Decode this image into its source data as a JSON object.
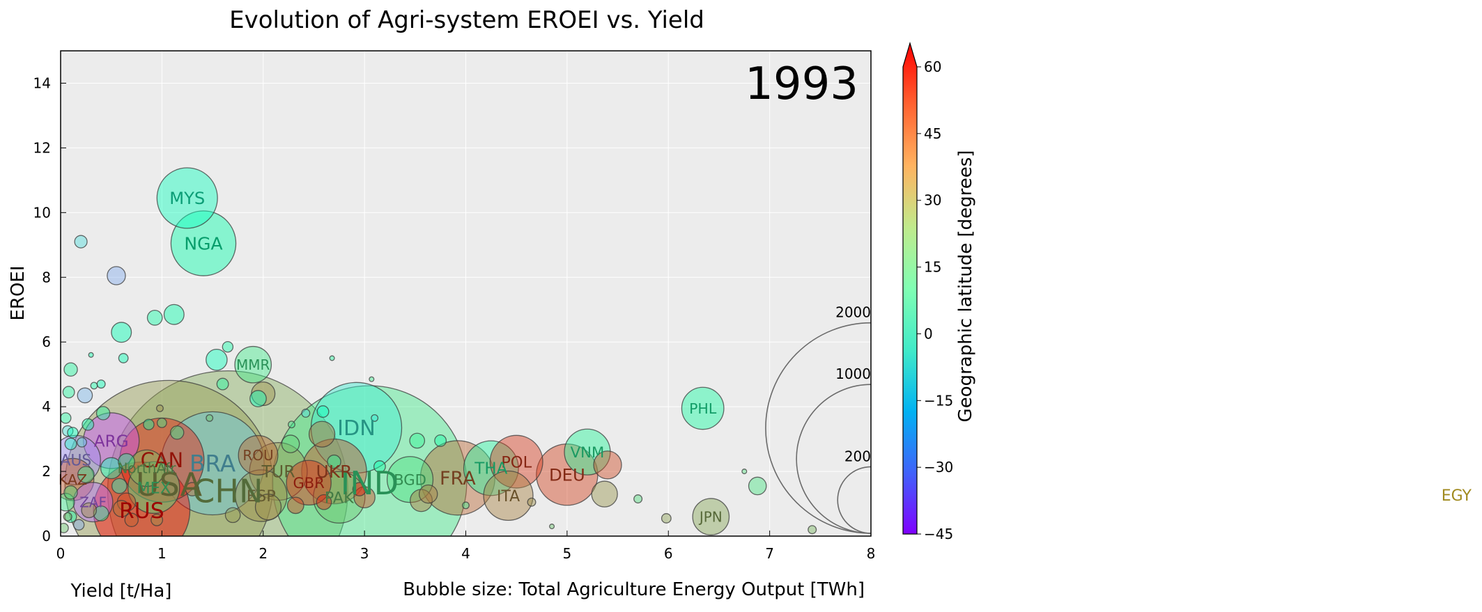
{
  "chart_data": {
    "type": "scatter",
    "title": "Evolution of Agri-system EROEI vs. Yield",
    "year_label": "1993",
    "xlabel": "Yield [t/Ha]",
    "ylabel": "EROEI",
    "size_label": "Bubble size: Total Agriculture Energy Output [TWh]",
    "colorbar_label": "Geographic latitude [degrees]",
    "xlim": [
      0,
      8
    ],
    "ylim": [
      0,
      15
    ],
    "x_ticks": [
      "0",
      "1",
      "2",
      "3",
      "4",
      "5",
      "6",
      "7",
      "8"
    ],
    "y_ticks": [
      "0",
      "2",
      "4",
      "6",
      "8",
      "10",
      "12",
      "14"
    ],
    "color_range": [
      -45,
      60
    ],
    "color_ticks": [
      "−45",
      "−30",
      "−15",
      "0",
      "15",
      "30",
      "45",
      "60"
    ],
    "grid": true,
    "bubble_size_legend": [
      {
        "label": "2000",
        "value": 2000
      },
      {
        "label": "1000",
        "value": 1000
      },
      {
        "label": "200",
        "value": 200
      }
    ],
    "outside_label": {
      "text": "EGY",
      "color": "#a08a1e"
    },
    "points": [
      {
        "label": "MYS",
        "x": 1.25,
        "y": 10.45,
        "value": 165,
        "lat": 4
      },
      {
        "label": "NGA",
        "x": 1.41,
        "y": 9.05,
        "value": 190,
        "lat": 10
      },
      {
        "label": "MMR",
        "x": 1.9,
        "y": 5.3,
        "value": 60,
        "lat": 21
      },
      {
        "label": "PHL",
        "x": 6.34,
        "y": 3.95,
        "value": 80,
        "lat": 13
      },
      {
        "label": "IDN",
        "x": 2.92,
        "y": 3.35,
        "value": 370,
        "lat": -5
      },
      {
        "label": "ARG",
        "x": 0.5,
        "y": 2.95,
        "value": 140,
        "lat": -34
      },
      {
        "label": "VNM",
        "x": 5.2,
        "y": 2.6,
        "value": 95,
        "lat": 16
      },
      {
        "label": "POL",
        "x": 4.5,
        "y": 2.3,
        "value": 125,
        "lat": 52
      },
      {
        "label": "THA",
        "x": 4.25,
        "y": 2.1,
        "value": 135,
        "lat": 15
      },
      {
        "label": "DEU",
        "x": 5.0,
        "y": 1.9,
        "value": 170,
        "lat": 51
      },
      {
        "label": "FRA",
        "x": 3.92,
        "y": 1.8,
        "value": 250,
        "lat": 46
      },
      {
        "label": "ITA",
        "x": 4.42,
        "y": 1.25,
        "value": 110,
        "lat": 42
      },
      {
        "label": "JPN",
        "x": 6.42,
        "y": 0.6,
        "value": 60,
        "lat": 36
      },
      {
        "label": "BGD",
        "x": 3.45,
        "y": 1.75,
        "value": 95,
        "lat": 24
      },
      {
        "label": "IND",
        "x": 3.05,
        "y": 1.65,
        "value": 1700,
        "lat": 21
      },
      {
        "label": "PAK",
        "x": 2.75,
        "y": 1.2,
        "value": 120,
        "lat": 30
      },
      {
        "label": "UKR",
        "x": 2.7,
        "y": 2.0,
        "value": 190,
        "lat": 49
      },
      {
        "label": "GBR",
        "x": 2.45,
        "y": 1.65,
        "value": 90,
        "lat": 54
      },
      {
        "label": "TUR",
        "x": 2.15,
        "y": 2.0,
        "value": 150,
        "lat": 39
      },
      {
        "label": "ESP",
        "x": 1.98,
        "y": 1.25,
        "value": 120,
        "lat": 40
      },
      {
        "label": "ROU",
        "x": 1.95,
        "y": 2.5,
        "value": 70,
        "lat": 46
      },
      {
        "label": "CHN",
        "x": 1.65,
        "y": 1.4,
        "value": 2600,
        "lat": 35
      },
      {
        "label": "BRA",
        "x": 1.5,
        "y": 2.25,
        "value": 480,
        "lat": -14
      },
      {
        "label": "USA",
        "x": 1.07,
        "y": 1.6,
        "value": 1950,
        "lat": 38
      },
      {
        "label": "CAN",
        "x": 1.0,
        "y": 2.35,
        "value": 320,
        "lat": 56
      },
      {
        "label": "NorthAfr",
        "x": 0.85,
        "y": 2.1,
        "value": 60,
        "lat": 32
      },
      {
        "label": "MEX",
        "x": 0.92,
        "y": 1.5,
        "value": 120,
        "lat": 23
      },
      {
        "label": "RUS",
        "x": 0.8,
        "y": 0.8,
        "value": 420,
        "lat": 61
      },
      {
        "label": "AUS",
        "x": 0.15,
        "y": 2.35,
        "value": 110,
        "lat": -25
      },
      {
        "label": "KAZ",
        "x": 0.12,
        "y": 1.75,
        "value": 80,
        "lat": 48
      },
      {
        "label": "ZAF",
        "x": 0.32,
        "y": 1.05,
        "value": 70,
        "lat": -30
      },
      {
        "label": "",
        "x": 0.2,
        "y": 9.1,
        "value": 7,
        "lat": -10
      },
      {
        "label": "",
        "x": 0.55,
        "y": 8.05,
        "value": 15,
        "lat": -20
      },
      {
        "label": "",
        "x": 0.6,
        "y": 6.3,
        "value": 18,
        "lat": 8
      },
      {
        "label": "",
        "x": 0.93,
        "y": 6.75,
        "value": 10,
        "lat": 12
      },
      {
        "label": "",
        "x": 1.12,
        "y": 6.85,
        "value": 18,
        "lat": 10
      },
      {
        "label": "",
        "x": 1.54,
        "y": 5.45,
        "value": 20,
        "lat": 5
      },
      {
        "label": "",
        "x": 1.65,
        "y": 5.85,
        "value": 5,
        "lat": 12
      },
      {
        "label": "",
        "x": 1.6,
        "y": 4.7,
        "value": 6,
        "lat": 15
      },
      {
        "label": "",
        "x": 1.95,
        "y": 4.25,
        "value": 12,
        "lat": 4
      },
      {
        "label": "",
        "x": 2.0,
        "y": 4.4,
        "value": 25,
        "lat": 40
      },
      {
        "label": "",
        "x": 0.1,
        "y": 5.15,
        "value": 8,
        "lat": 15
      },
      {
        "label": "",
        "x": 0.62,
        "y": 5.5,
        "value": 4,
        "lat": 8
      },
      {
        "label": "",
        "x": 0.3,
        "y": 5.6,
        "value": 1,
        "lat": 10
      },
      {
        "label": "",
        "x": 0.08,
        "y": 4.45,
        "value": 6,
        "lat": 15
      },
      {
        "label": "",
        "x": 0.24,
        "y": 4.35,
        "value": 10,
        "lat": -18
      },
      {
        "label": "",
        "x": 0.4,
        "y": 4.7,
        "value": 3,
        "lat": 8
      },
      {
        "label": "",
        "x": 0.33,
        "y": 4.65,
        "value": 2,
        "lat": 12
      },
      {
        "label": "",
        "x": 0.42,
        "y": 3.8,
        "value": 8,
        "lat": 15
      },
      {
        "label": "",
        "x": 0.05,
        "y": 3.65,
        "value": 5,
        "lat": 15
      },
      {
        "label": "",
        "x": 0.27,
        "y": 3.45,
        "value": 6,
        "lat": 10
      },
      {
        "label": "",
        "x": 0.07,
        "y": 3.25,
        "value": 5,
        "lat": -8
      },
      {
        "label": "",
        "x": 0.12,
        "y": 3.2,
        "value": 5,
        "lat": 8
      },
      {
        "label": "",
        "x": 0.1,
        "y": 2.85,
        "value": 6,
        "lat": 0
      },
      {
        "label": "",
        "x": 0.21,
        "y": 2.9,
        "value": 4,
        "lat": -12
      },
      {
        "label": "",
        "x": 0.65,
        "y": 2.3,
        "value": 12,
        "lat": 15
      },
      {
        "label": "",
        "x": 0.5,
        "y": 2.1,
        "value": 20,
        "lat": 2
      },
      {
        "label": "",
        "x": 0.25,
        "y": 1.9,
        "value": 12,
        "lat": 20
      },
      {
        "label": "",
        "x": 0.58,
        "y": 1.55,
        "value": 10,
        "lat": 0
      },
      {
        "label": "",
        "x": 0.1,
        "y": 1.35,
        "value": 8,
        "lat": 25
      },
      {
        "label": "",
        "x": 0.05,
        "y": 1.05,
        "value": 14,
        "lat": 20
      },
      {
        "label": "",
        "x": 0.1,
        "y": 0.6,
        "value": 6,
        "lat": 12
      },
      {
        "label": "",
        "x": 0.18,
        "y": 0.35,
        "value": 5,
        "lat": -20
      },
      {
        "label": "",
        "x": 0.4,
        "y": 0.7,
        "value": 10,
        "lat": 18
      },
      {
        "label": "",
        "x": 0.03,
        "y": 0.25,
        "value": 4,
        "lat": 30
      },
      {
        "label": "",
        "x": 0.07,
        "y": 0.6,
        "value": 3,
        "lat": 35
      },
      {
        "label": "",
        "x": 0.87,
        "y": 3.45,
        "value": 5,
        "lat": 12
      },
      {
        "label": "",
        "x": 1.0,
        "y": 3.5,
        "value": 4,
        "lat": 20
      },
      {
        "label": "",
        "x": 1.15,
        "y": 3.2,
        "value": 8,
        "lat": 20
      },
      {
        "label": "",
        "x": 0.98,
        "y": 3.95,
        "value": 2,
        "lat": 40
      },
      {
        "label": "",
        "x": 1.47,
        "y": 3.65,
        "value": 2,
        "lat": 30
      },
      {
        "label": "",
        "x": 2.27,
        "y": 2.85,
        "value": 14,
        "lat": 28
      },
      {
        "label": "",
        "x": 2.42,
        "y": 3.8,
        "value": 3,
        "lat": -10
      },
      {
        "label": "",
        "x": 2.59,
        "y": 3.85,
        "value": 6,
        "lat": 5
      },
      {
        "label": "",
        "x": 2.28,
        "y": 3.45,
        "value": 2,
        "lat": 20
      },
      {
        "label": "",
        "x": 2.58,
        "y": 3.15,
        "value": 30,
        "lat": 45
      },
      {
        "label": "",
        "x": 2.7,
        "y": 2.3,
        "value": 8,
        "lat": 18
      },
      {
        "label": "",
        "x": 3.15,
        "y": 2.15,
        "value": 6,
        "lat": 12
      },
      {
        "label": "",
        "x": 3.52,
        "y": 2.95,
        "value": 10,
        "lat": 18
      },
      {
        "label": "",
        "x": 3.75,
        "y": 2.95,
        "value": 6,
        "lat": 12
      },
      {
        "label": "",
        "x": 3.1,
        "y": 3.65,
        "value": 2,
        "lat": -5
      },
      {
        "label": "",
        "x": 3.07,
        "y": 4.85,
        "value": 1,
        "lat": 20
      },
      {
        "label": "",
        "x": 2.68,
        "y": 5.5,
        "value": 1,
        "lat": 15
      },
      {
        "label": "",
        "x": 5.4,
        "y": 2.2,
        "value": 35,
        "lat": 50
      },
      {
        "label": "",
        "x": 5.37,
        "y": 1.3,
        "value": 30,
        "lat": 39
      },
      {
        "label": "",
        "x": 3.63,
        "y": 1.3,
        "value": 15,
        "lat": 42
      },
      {
        "label": "",
        "x": 3.56,
        "y": 1.1,
        "value": 22,
        "lat": 44
      },
      {
        "label": "",
        "x": 2.32,
        "y": 0.95,
        "value": 12,
        "lat": 51
      },
      {
        "label": "",
        "x": 2.6,
        "y": 1.05,
        "value": 10,
        "lat": 55
      },
      {
        "label": "",
        "x": 3.0,
        "y": 1.2,
        "value": 20,
        "lat": 50
      },
      {
        "label": "",
        "x": 2.05,
        "y": 0.9,
        "value": 30,
        "lat": 40
      },
      {
        "label": "",
        "x": 2.95,
        "y": 1.45,
        "value": 8,
        "lat": 57
      },
      {
        "label": "",
        "x": 1.7,
        "y": 0.65,
        "value": 10,
        "lat": 38
      },
      {
        "label": "",
        "x": 1.3,
        "y": 1.45,
        "value": 8,
        "lat": 46
      },
      {
        "label": "",
        "x": 0.65,
        "y": 1.05,
        "value": 15,
        "lat": 50
      },
      {
        "label": "",
        "x": 0.6,
        "y": 0.85,
        "value": 12,
        "lat": 44
      },
      {
        "label": "",
        "x": 0.7,
        "y": 0.5,
        "value": 8,
        "lat": 47
      },
      {
        "label": "",
        "x": 0.95,
        "y": 0.5,
        "value": 6,
        "lat": 40
      },
      {
        "label": "",
        "x": 0.28,
        "y": 0.8,
        "value": 10,
        "lat": 40
      },
      {
        "label": "",
        "x": 4.65,
        "y": 1.05,
        "value": 3,
        "lat": 40
      },
      {
        "label": "",
        "x": 4.0,
        "y": 0.95,
        "value": 2,
        "lat": 20
      },
      {
        "label": "",
        "x": 5.7,
        "y": 1.15,
        "value": 3,
        "lat": 25
      },
      {
        "label": "",
        "x": 5.98,
        "y": 0.55,
        "value": 4,
        "lat": 37
      },
      {
        "label": "",
        "x": 4.85,
        "y": 0.3,
        "value": 1,
        "lat": 30
      },
      {
        "label": "",
        "x": 6.88,
        "y": 1.55,
        "value": 14,
        "lat": 23
      },
      {
        "label": "",
        "x": 6.75,
        "y": 2.0,
        "value": 1,
        "lat": 25
      },
      {
        "label": "",
        "x": 7.42,
        "y": 0.2,
        "value": 3,
        "lat": 33
      }
    ]
  }
}
